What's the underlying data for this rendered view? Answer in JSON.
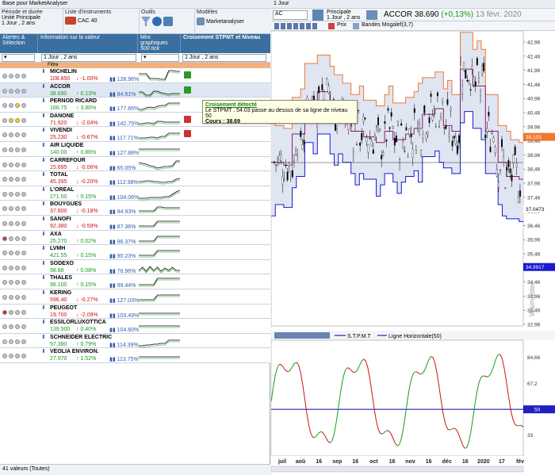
{
  "left": {
    "window_title": "Base pour MarketAnalyser",
    "toolbar": {
      "period_title": "Période et durée",
      "period_line1": "Unité Principale",
      "period_line2": "1 Jour , 2 ans",
      "list_title": "Liste d'instruments",
      "list_value": "CAC 40",
      "tools_title": "Outils",
      "models_title": "Modèles",
      "models_value": "Marketanalyser"
    },
    "headers": {
      "alerts": "Alertes & Sélection",
      "info": "Information sur la valeur",
      "mini": "Mini graphiques",
      "mini_sub": "500 tick",
      "cross": "Croisement STPMT et Niveau"
    },
    "filter": {
      "info_value": "1 Jour , 2 ans",
      "cross_value": "1 Jour , 2 ans",
      "filtre_label": "Filtre"
    },
    "rows": [
      {
        "name": "MICHELIN",
        "price": "108.850",
        "change": "-1.00%",
        "dir": "down",
        "pct": "128.96%",
        "flag": "green",
        "circles": [
          "g",
          "g",
          "g",
          "g"
        ],
        "spark": [
          6,
          6,
          6,
          12,
          12,
          12,
          13,
          13,
          2,
          2,
          3,
          3
        ]
      },
      {
        "name": "ACCOR",
        "price": "38.690",
        "change": "0.13%",
        "dir": "up",
        "pct": "84.91%",
        "flag": "green",
        "circles": [
          "g",
          "g",
          "g",
          "g"
        ],
        "spark": [
          10,
          10,
          14,
          14,
          9,
          9,
          11,
          12,
          13,
          12,
          12,
          12
        ]
      },
      {
        "name": "PERNOD RICARD",
        "price": "166.75",
        "change": "3.80%",
        "dir": "up",
        "pct": "177.85%",
        "flag": "",
        "circles": [
          "g",
          "g",
          "y",
          "g"
        ],
        "spark": [
          14,
          14,
          12,
          11,
          12,
          10,
          9,
          9,
          6,
          6,
          6,
          6
        ]
      },
      {
        "name": "DANONE",
        "price": "71.920",
        "change": "-2.04%",
        "dir": "down",
        "pct": "142.75%",
        "flag": "red",
        "circles": [
          "g",
          "y",
          "y",
          "g"
        ],
        "spark": [
          13,
          13,
          12,
          12,
          13,
          10,
          10,
          11,
          11,
          11,
          11,
          11
        ]
      },
      {
        "name": "VIVENDI",
        "price": "25.230",
        "change": "-0.67%",
        "dir": "down",
        "pct": "117.71%",
        "flag": "red",
        "circles": [
          "g",
          "g",
          "g",
          "g"
        ],
        "spark": [
          13,
          13,
          13,
          12,
          12,
          13,
          11,
          11,
          7,
          7,
          7,
          7
        ]
      },
      {
        "name": "AIR LIQUIDE",
        "price": "140.00",
        "change": "0.86%",
        "dir": "up",
        "pct": "127.88%",
        "flag": "",
        "circles": [
          "g",
          "g",
          "g",
          "g"
        ],
        "spark": [
          8,
          8,
          8,
          8,
          8,
          8,
          8,
          8,
          8,
          8,
          8,
          8
        ]
      },
      {
        "name": "CARREFOUR",
        "price": "15.695",
        "change": "-0.06%",
        "dir": "down",
        "pct": "65.05%",
        "flag": "",
        "circles": [
          "g",
          "g",
          "g",
          "g"
        ],
        "spark": [
          6,
          7,
          8,
          10,
          11,
          13,
          12,
          11,
          11,
          10,
          4,
          4
        ]
      },
      {
        "name": "TOTAL",
        "price": "45.395",
        "change": "-0.20%",
        "dir": "down",
        "pct": "112.98%",
        "flag": "",
        "circles": [
          "g",
          "g",
          "g",
          "g"
        ],
        "spark": [
          12,
          12,
          11,
          11,
          12,
          12,
          13,
          13,
          12,
          12,
          9,
          8
        ]
      },
      {
        "name": "L'OREAL",
        "price": "271.50",
        "change": "0.15%",
        "dir": "up",
        "pct": "104.06%",
        "flag": "",
        "circles": [
          "g",
          "g",
          "g",
          "g"
        ],
        "spark": [
          14,
          14,
          14,
          13,
          13,
          13,
          13,
          12,
          12,
          9,
          6,
          4
        ]
      },
      {
        "name": "BOUYGUES",
        "price": "37.800",
        "change": "-0.18%",
        "dir": "down",
        "pct": "94.93%",
        "flag": "",
        "circles": [
          "g",
          "g",
          "g",
          "g"
        ],
        "spark": [
          12,
          12,
          12,
          12,
          12,
          7,
          7,
          8,
          8,
          8,
          8,
          8
        ]
      },
      {
        "name": "SANOFI",
        "price": "92.380",
        "change": "-0.59%",
        "dir": "down",
        "pct": "87.36%",
        "flag": "",
        "circles": [
          "g",
          "g",
          "g",
          "g"
        ],
        "spark": [
          12,
          12,
          12,
          12,
          12,
          6,
          6,
          6,
          6,
          6,
          6,
          6
        ]
      },
      {
        "name": "AXA",
        "price": "25.270",
        "change": "0.02%",
        "dir": "up",
        "pct": "96.37%",
        "flag": "",
        "circles": [
          "r",
          "g",
          "g",
          "g"
        ],
        "spark": [
          12,
          12,
          12,
          12,
          12,
          6,
          6,
          6,
          6,
          6,
          6,
          6
        ]
      },
      {
        "name": "LVMH",
        "price": "421.55",
        "change": "0.15%",
        "dir": "up",
        "pct": "90.23%",
        "flag": "",
        "circles": [
          "g",
          "g",
          "g",
          "g"
        ],
        "spark": [
          12,
          12,
          12,
          12,
          12,
          6,
          6,
          6,
          6,
          6,
          6,
          6
        ]
      },
      {
        "name": "SODEXO",
        "price": "98.88",
        "change": "0.08%",
        "dir": "up",
        "pct": "76.96%",
        "flag": "",
        "circles": [
          "g",
          "g",
          "g",
          "g"
        ],
        "spark": [
          12,
          8,
          13,
          7,
          12,
          8,
          13,
          9,
          12,
          8,
          12,
          12
        ]
      },
      {
        "name": "THALES",
        "price": "96.100",
        "change": "0.15%",
        "dir": "up",
        "pct": "99.44%",
        "flag": "",
        "circles": [
          "g",
          "g",
          "g",
          "g"
        ],
        "spark": [
          12,
          12,
          12,
          12,
          12,
          4,
          4,
          4,
          4,
          4,
          4,
          4
        ]
      },
      {
        "name": "KERING",
        "price": "596.40",
        "change": "-0.27%",
        "dir": "down",
        "pct": "127.03%",
        "flag": "",
        "circles": [
          "g",
          "g",
          "g",
          "g"
        ],
        "spark": [
          12,
          12,
          12,
          12,
          12,
          6,
          6,
          6,
          6,
          6,
          6,
          6
        ]
      },
      {
        "name": "PEUGEOT",
        "price": "19.700",
        "change": "-2.09%",
        "dir": "down",
        "pct": "103.49%",
        "flag": "",
        "circles": [
          "r",
          "g",
          "g",
          "g"
        ],
        "spark": [
          10,
          10,
          10,
          10,
          10,
          10,
          10,
          10,
          10,
          10,
          10,
          10
        ]
      },
      {
        "name": "ESSILORLUXOTTICA",
        "price": "139.500",
        "change": "0.40%",
        "dir": "up",
        "pct": "104.60%",
        "flag": "",
        "circles": [
          "g",
          "g",
          "g",
          "g"
        ],
        "spark": [
          8,
          8,
          8,
          8,
          8,
          8,
          8,
          8,
          8,
          8,
          8,
          8
        ]
      },
      {
        "name": "SCHNEIDER ELECTRIC",
        "price": "97.380",
        "change": "0.79%",
        "dir": "up",
        "pct": "114.39%",
        "flag": "",
        "circles": [
          "g",
          "g",
          "g",
          "g"
        ],
        "spark": [
          14,
          14,
          13,
          13,
          12,
          12,
          11,
          11,
          7,
          7,
          7,
          7
        ]
      },
      {
        "name": "VEOLIA ENVIRON.",
        "price": "27.970",
        "change": "1.52%",
        "dir": "up",
        "pct": "113.75%",
        "flag": "",
        "circles": [
          "g",
          "g",
          "g",
          "g"
        ],
        "spark": [
          10,
          10,
          10,
          10,
          10,
          10,
          10,
          10,
          10,
          10,
          10,
          10
        ]
      }
    ],
    "footer": "41 valeurs (Toutes)",
    "tooltip": {
      "title": "Croisement détecté",
      "text": "Le STPMT : 54.03 passe au dessus de sa ligne de niveau 50",
      "cours": "Cours : 38.69"
    }
  },
  "right": {
    "window_title": "1 Jour",
    "symbol": "AC",
    "unit_line1": "Principale",
    "unit_line2": "1 Jour , 2 ans",
    "instrument": "ACCOR",
    "price": "38.690",
    "change": "(+0,13%)",
    "date": "13 févr. 2020",
    "legend_price": "Prix",
    "legend_bands": "Bandes Mogalef(3,7)",
    "ind_legend1": "S.T.P.M.T",
    "ind_legend2": "Ligne Horizontale(50)",
    "price_ticks": [
      "42,96",
      "42,46",
      "41,96",
      "41,46",
      "40,96",
      "40,46",
      "39,96",
      "39,46",
      "38,96",
      "38,46",
      "37,96",
      "37,46",
      "36,96",
      "36,46",
      "35,96",
      "35,46",
      "34,96",
      "34,46",
      "33,96",
      "33,46",
      "32,96"
    ],
    "price_tag": "38.103",
    "low_tag1": "37.0473",
    "low_tag2": "34.9917",
    "ind_ticks": [
      "84,66",
      "67,2",
      "50",
      "33"
    ],
    "ind_tag": "50",
    "x_labels": [
      "juil",
      "aoû",
      "16",
      "sep",
      "16",
      "oct",
      "16",
      "nov",
      "16",
      "déc",
      "16",
      "2020",
      "17",
      "fév"
    ],
    "watermark": "Waimaster",
    "colors": {
      "bg_header": "#3a6fa0",
      "band_upper": "#f07830",
      "band_mid": "#8e1a6e",
      "band_lower": "#1a1ad0",
      "band_fill": "#dfe5f1",
      "ind_line_up": "#1a9a1a",
      "ind_line_down": "#d01010",
      "level_line": "#2020c0"
    }
  }
}
